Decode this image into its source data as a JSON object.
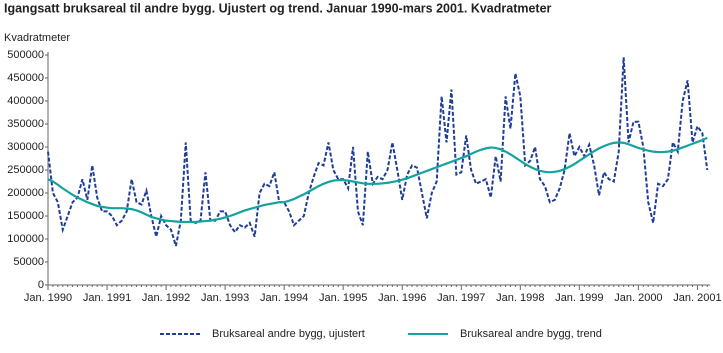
{
  "chart_data": {
    "type": "line",
    "title": "Igangsatt bruksareal til andre bygg. Ujustert og trend. Januar 1990-mars 2001. Kvadratmeter",
    "y_label": "Kvadratmeter",
    "categories": [
      "Jan. 1990",
      null,
      null,
      null,
      null,
      null,
      null,
      null,
      null,
      null,
      null,
      null,
      "Jan. 1991",
      null,
      null,
      null,
      null,
      null,
      null,
      null,
      null,
      null,
      null,
      null,
      "Jan. 1992",
      null,
      null,
      null,
      null,
      null,
      null,
      null,
      null,
      null,
      null,
      null,
      "Jan. 1993",
      null,
      null,
      null,
      null,
      null,
      null,
      null,
      null,
      null,
      null,
      null,
      "Jan. 1994",
      null,
      null,
      null,
      null,
      null,
      null,
      null,
      null,
      null,
      null,
      null,
      "Jan. 1995",
      null,
      null,
      null,
      null,
      null,
      null,
      null,
      null,
      null,
      null,
      null,
      "Jan. 1996",
      null,
      null,
      null,
      null,
      null,
      null,
      null,
      null,
      null,
      null,
      null,
      "Jan. 1997",
      null,
      null,
      null,
      null,
      null,
      null,
      null,
      null,
      null,
      null,
      null,
      "Jan. 1998",
      null,
      null,
      null,
      null,
      null,
      null,
      null,
      null,
      null,
      null,
      null,
      "Jan. 1999",
      null,
      null,
      null,
      null,
      null,
      null,
      null,
      null,
      null,
      null,
      null,
      "Jan. 2000",
      null,
      null,
      null,
      null,
      null,
      null,
      null,
      null,
      null,
      null,
      null,
      "Jan. 2001",
      null,
      null
    ],
    "series": [
      {
        "name": "Bruksareal andre bygg, ujustert",
        "color": "#1f3d99",
        "dashed": true,
        "values": [
          290000,
          200000,
          180000,
          120000,
          150000,
          180000,
          190000,
          230000,
          185000,
          260000,
          190000,
          160000,
          160000,
          150000,
          130000,
          140000,
          160000,
          230000,
          180000,
          175000,
          205000,
          150000,
          105000,
          150000,
          130000,
          120000,
          85000,
          140000,
          310000,
          140000,
          135000,
          140000,
          245000,
          140000,
          140000,
          160000,
          160000,
          130000,
          115000,
          130000,
          125000,
          135000,
          105000,
          200000,
          220000,
          215000,
          245000,
          180000,
          180000,
          160000,
          130000,
          140000,
          150000,
          200000,
          235000,
          265000,
          260000,
          310000,
          250000,
          230000,
          230000,
          210000,
          300000,
          160000,
          130000,
          290000,
          220000,
          235000,
          230000,
          250000,
          310000,
          250000,
          185000,
          240000,
          260000,
          255000,
          200000,
          145000,
          200000,
          225000,
          410000,
          310000,
          425000,
          240000,
          245000,
          325000,
          250000,
          220000,
          225000,
          230000,
          190000,
          280000,
          225000,
          410000,
          340000,
          460000,
          410000,
          260000,
          270000,
          300000,
          230000,
          215000,
          180000,
          185000,
          210000,
          250000,
          330000,
          280000,
          300000,
          280000,
          305000,
          260000,
          195000,
          245000,
          230000,
          225000,
          290000,
          495000,
          310000,
          355000,
          355000,
          300000,
          180000,
          135000,
          220000,
          215000,
          230000,
          310000,
          290000,
          400000,
          445000,
          310000,
          345000,
          330000,
          250000
        ]
      },
      {
        "name": "Bruksareal andre bygg, trend",
        "color": "#14a39e",
        "dashed": false,
        "values": [
          230000,
          225000,
          218000,
          210000,
          203000,
          196000,
          190000,
          185000,
          180000,
          176000,
          172000,
          170000,
          168000,
          167000,
          167000,
          167000,
          166000,
          165000,
          162000,
          158000,
          153000,
          148000,
          145000,
          142000,
          140000,
          139000,
          138000,
          137000,
          137000,
          137000,
          137000,
          138000,
          139000,
          140000,
          142000,
          144000,
          147000,
          150000,
          154000,
          158000,
          162000,
          165000,
          168000,
          171000,
          174000,
          176000,
          178000,
          180000,
          180000,
          183000,
          187000,
          192000,
          197000,
          203000,
          209000,
          215000,
          220000,
          224000,
          227000,
          228000,
          228000,
          227000,
          225000,
          223000,
          221000,
          220000,
          220000,
          220000,
          221000,
          222000,
          224000,
          226000,
          229000,
          232000,
          236000,
          240000,
          244000,
          248000,
          252000,
          256000,
          260000,
          264000,
          268000,
          272000,
          276000,
          280000,
          285000,
          290000,
          294000,
          297000,
          299000,
          298000,
          295000,
          290000,
          284000,
          277000,
          270000,
          263000,
          257000,
          252000,
          248000,
          246000,
          245000,
          246000,
          248000,
          252000,
          257000,
          263000,
          270000,
          277000,
          284000,
          291000,
          297000,
          302000,
          306000,
          309000,
          310000,
          309000,
          306000,
          302000,
          298000,
          295000,
          292000,
          290000,
          289000,
          289000,
          290000,
          292000,
          295000,
          299000,
          303000,
          307000,
          311000,
          315000,
          320000
        ]
      }
    ],
    "ylim": [
      0,
      500000
    ],
    "yticks": [
      0,
      50000,
      100000,
      150000,
      200000,
      250000,
      300000,
      350000,
      400000,
      450000,
      500000
    ],
    "grid": false
  }
}
